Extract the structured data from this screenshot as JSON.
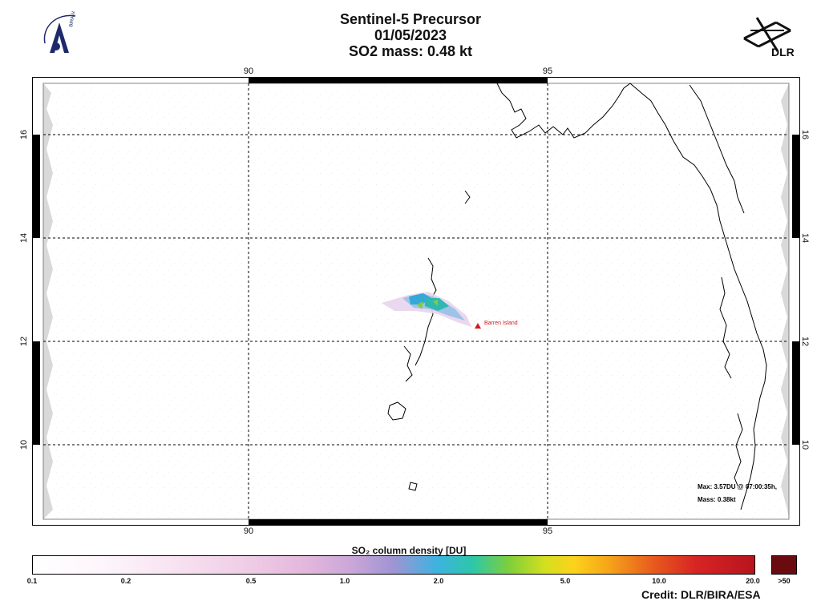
{
  "header": {
    "title_line1": "Sentinel-5 Precursor",
    "title_line2": "01/05/2023",
    "title_line3": "SO2 mass: 0.48   kt"
  },
  "logos": {
    "left_text": "BIRA-IASB",
    "right_text": "DLR"
  },
  "map": {
    "lon_labels": [
      "90",
      "95"
    ],
    "lat_labels": [
      "16",
      "14",
      "12",
      "10"
    ],
    "volcano_label": "Barren Island",
    "volcano_color": "#d11a1a",
    "info_max": "Max:  3.57DU @ 07:00:35h,",
    "info_mass": "Mass:  0.38kt"
  },
  "legend": {
    "title": "SO₂ column density [DU]",
    "ticks": [
      "0.1",
      "0.2",
      "0.5",
      "1.0",
      "2.0",
      "5.0",
      "10.0",
      "20.0"
    ],
    "max_label": ">50",
    "max_color": "#6a0b10"
  },
  "credit": "Credit: DLR/BIRA/ESA"
}
